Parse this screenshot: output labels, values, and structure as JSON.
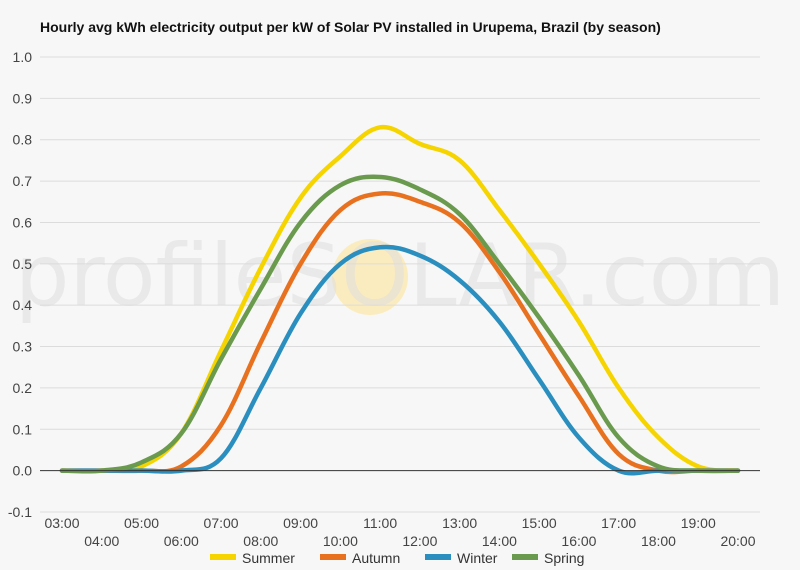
{
  "chart_data": {
    "type": "line",
    "title": "Hourly avg kWh electricity output per kW of Solar PV installed in Urupema, Brazil (by season)",
    "xlabel": "",
    "ylabel": "",
    "ylim": [
      -0.1,
      1.0
    ],
    "yticks": [
      -0.1,
      0.0,
      0.1,
      0.2,
      0.3,
      0.4,
      0.5,
      0.6,
      0.7,
      0.8,
      0.9,
      1.0
    ],
    "ytick_labels": [
      "-0.1",
      "0.0",
      "0.1",
      "0.2",
      "0.3",
      "0.4",
      "0.5",
      "0.6",
      "0.7",
      "0.8",
      "0.9",
      "1.0"
    ],
    "categories": [
      "03:00",
      "04:00",
      "05:00",
      "06:00",
      "07:00",
      "08:00",
      "09:00",
      "10:00",
      "11:00",
      "12:00",
      "13:00",
      "14:00",
      "15:00",
      "16:00",
      "17:00",
      "18:00",
      "19:00",
      "20:00"
    ],
    "grid": true,
    "legend_position": "bottom",
    "watermark": "profileSOLAR.com",
    "series": [
      {
        "name": "Summer",
        "color": "#f5d400",
        "values": [
          0.0,
          0.0,
          0.01,
          0.09,
          0.29,
          0.49,
          0.66,
          0.76,
          0.83,
          0.79,
          0.75,
          0.63,
          0.5,
          0.36,
          0.2,
          0.08,
          0.01,
          0.0
        ]
      },
      {
        "name": "Autumn",
        "color": "#e8711f",
        "values": [
          0.0,
          0.0,
          0.0,
          0.01,
          0.11,
          0.31,
          0.5,
          0.63,
          0.67,
          0.65,
          0.6,
          0.48,
          0.33,
          0.18,
          0.04,
          0.0,
          0.0,
          0.0
        ]
      },
      {
        "name": "Winter",
        "color": "#2a8fbf",
        "values": [
          0.0,
          0.0,
          0.0,
          0.0,
          0.03,
          0.2,
          0.38,
          0.5,
          0.54,
          0.52,
          0.46,
          0.36,
          0.22,
          0.08,
          0.0,
          0.0,
          0.0,
          0.0
        ]
      },
      {
        "name": "Spring",
        "color": "#6a9a4e",
        "values": [
          0.0,
          0.0,
          0.02,
          0.09,
          0.27,
          0.44,
          0.6,
          0.69,
          0.71,
          0.68,
          0.62,
          0.5,
          0.37,
          0.23,
          0.08,
          0.01,
          0.0,
          0.0
        ]
      }
    ]
  }
}
